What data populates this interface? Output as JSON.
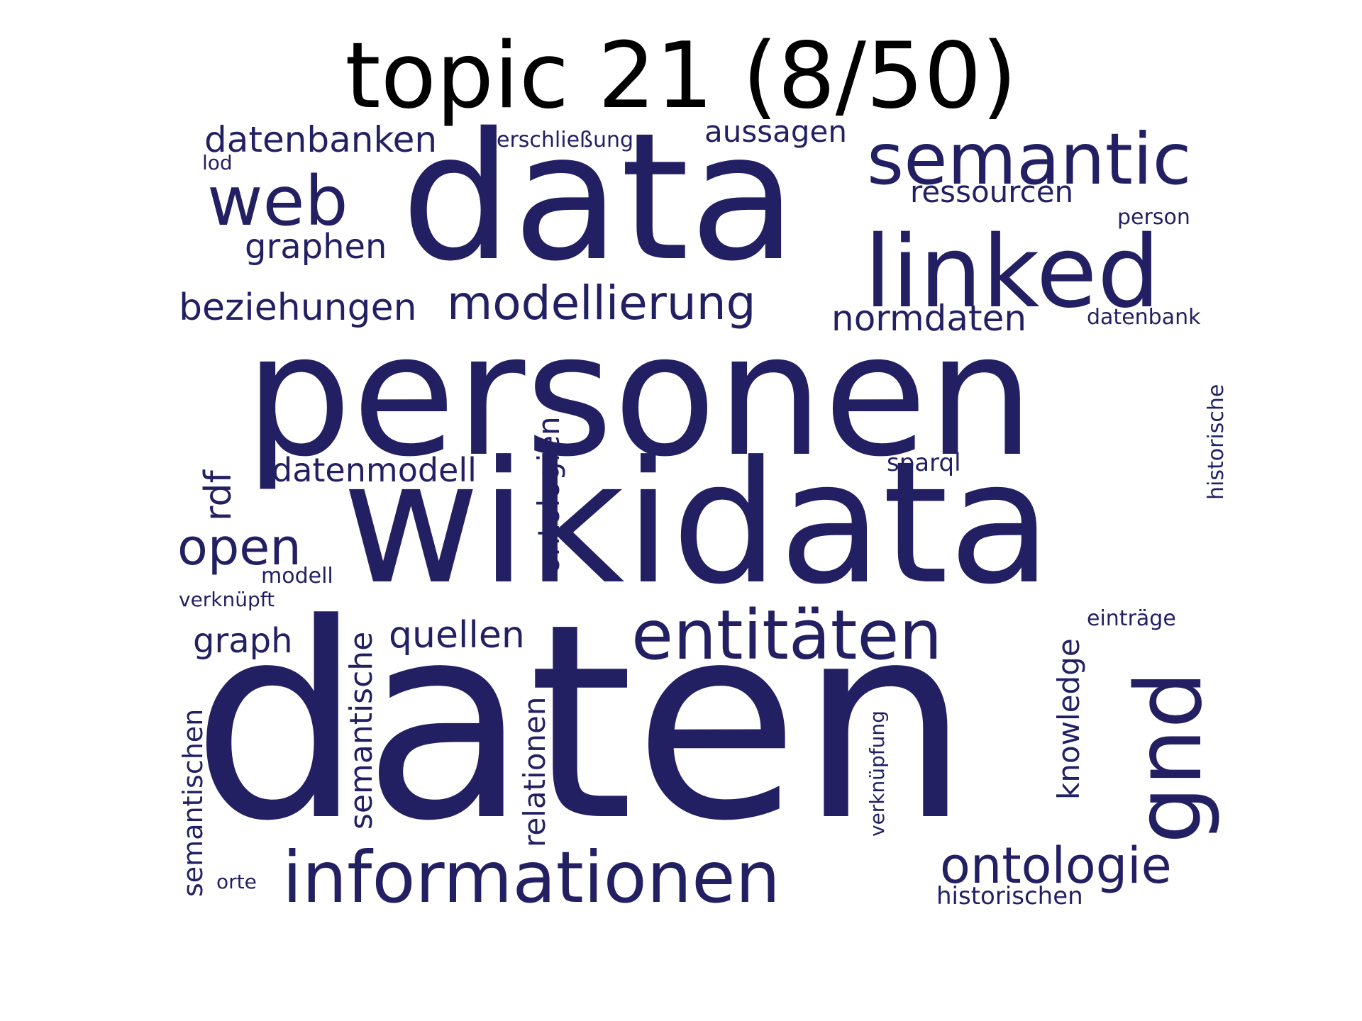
{
  "title": "topic 21 (8/50)",
  "word_color": "#231f63",
  "title_color": "#000000",
  "words": {
    "daten": "daten",
    "personen": "personen",
    "wikidata": "wikidata",
    "data": "data",
    "linked": "linked",
    "semantic": "semantic",
    "web": "web",
    "informationen": "informationen",
    "entitaeten": "entitäten",
    "gnd": "gnd",
    "modellierung": "modellierung",
    "ontologie": "ontologie",
    "open": "open",
    "beziehungen": "beziehungen",
    "datenbanken": "datenbanken",
    "rdf": "rdf",
    "normdaten": "normdaten",
    "graphen": "graphen",
    "ressourcen": "ressourcen",
    "aussagen": "aussagen",
    "datenmodell": "datenmodell",
    "ontologien": "ontologien",
    "quellen": "quellen",
    "graph": "graph",
    "semantische": "semantische",
    "relationen": "relationen",
    "knowledge": "knowledge",
    "semantischen": "semantischen",
    "historischen": "historischen",
    "sparql": "sparql",
    "historische": "historische",
    "erschliessung": "erschließung",
    "person": "person",
    "datenbank": "datenbank",
    "eintraege": "einträge",
    "verknuepfung": "verknüpfung",
    "modell": "modell",
    "verknuepft": "verknüpft",
    "orte": "orte",
    "lod": "lod"
  }
}
